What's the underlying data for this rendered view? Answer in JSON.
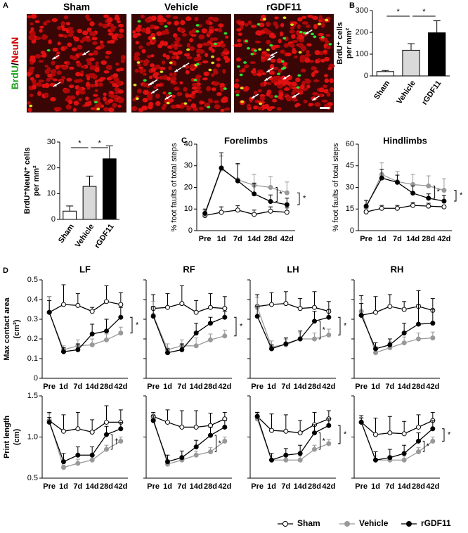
{
  "panel_labels": [
    "A",
    "B",
    "C",
    "D"
  ],
  "image_panel": {
    "label_green": "BrdU",
    "label_slash": "/",
    "label_red": "NeuN",
    "images": [
      "Sham",
      "Vehicle",
      "rGDF11"
    ]
  },
  "legend": [
    {
      "name": "Sham",
      "color": "#000000",
      "marker": "open"
    },
    {
      "name": "Vehicle",
      "color": "#999999",
      "marker": "filled"
    },
    {
      "name": "rGDF11",
      "color": "#000000",
      "marker": "filled"
    }
  ],
  "chart_data": [
    {
      "type": "bar",
      "ylabel": [
        "BrdU⁺ cells",
        "per mm²"
      ],
      "categories": [
        "Sham",
        "Vehicle",
        "rGDF11"
      ],
      "values": [
        20,
        118,
        198
      ],
      "errors": [
        5,
        30,
        55
      ],
      "colors": [
        "#ffffff",
        "#d9d9d9",
        "#000000"
      ],
      "ylim": [
        0,
        300
      ],
      "yticks": [
        0,
        100,
        200,
        300
      ],
      "significance": [
        "*",
        "*"
      ]
    },
    {
      "type": "bar",
      "ylabel": [
        "BrdU⁺NeuN⁺ cells",
        "per mm²"
      ],
      "categories": [
        "Sham",
        "Vehicle",
        "rGDF11"
      ],
      "values": [
        3.2,
        12.8,
        23.5
      ],
      "errors": [
        2,
        4,
        5
      ],
      "colors": [
        "#ffffff",
        "#d9d9d9",
        "#000000"
      ],
      "ylim": [
        0,
        30
      ],
      "yticks": [
        0,
        10,
        20,
        30
      ],
      "significance": [
        "*",
        "*"
      ]
    },
    {
      "type": "line",
      "title": "Forelimbs",
      "ylabel": "% foot faults of total steps",
      "categories": [
        "Pre",
        "1d",
        "7d",
        "14d",
        "28d",
        "42d"
      ],
      "ylim": [
        0,
        40
      ],
      "yticks": [
        0,
        10,
        20,
        30,
        40
      ],
      "series": [
        {
          "values": [
            7,
            8.5,
            9.5,
            7.5,
            9,
            8.5
          ],
          "errors": [
            1,
            2.5,
            2,
            2,
            2,
            2
          ]
        },
        {
          "values": [
            7.5,
            28.5,
            23.5,
            21,
            20,
            17.5
          ],
          "errors": [
            2,
            6,
            7,
            5,
            5,
            5
          ]
        },
        {
          "values": [
            8,
            29,
            23,
            17,
            13.5,
            12
          ],
          "errors": [
            2,
            7,
            8,
            5,
            3,
            3
          ]
        }
      ],
      "inner_label": "*",
      "bracket_label": "*"
    },
    {
      "type": "line",
      "title": "Hindlimbs",
      "ylabel": "% foot faults of total steps",
      "categories": [
        "Pre",
        "1d",
        "7d",
        "14d",
        "28d",
        "42d"
      ],
      "ylim": [
        0,
        60
      ],
      "yticks": [
        0,
        15,
        30,
        45,
        60
      ],
      "series": [
        {
          "values": [
            13,
            15.5,
            15.5,
            17.5,
            17,
            16.5
          ],
          "errors": [
            1,
            2,
            2,
            2,
            2,
            1
          ]
        },
        {
          "values": [
            16,
            39,
            34,
            32,
            31,
            28
          ],
          "errors": [
            5,
            8,
            7,
            7,
            7,
            8
          ]
        },
        {
          "values": [
            17,
            36.5,
            33.5,
            26,
            22.5,
            20.5
          ],
          "errors": [
            4,
            6,
            5,
            5,
            3,
            4
          ]
        }
      ],
      "inner_label": "*",
      "bracket_label": "*"
    },
    {
      "type": "line",
      "title": "LF",
      "ylabel": [
        "Max contact area",
        "(cm²)"
      ],
      "categories": [
        "Pre",
        "1d",
        "7d",
        "14d",
        "28d",
        "42d"
      ],
      "ylim": [
        0,
        0.5
      ],
      "yticks": [
        0,
        0.1,
        0.2,
        0.3,
        0.4,
        0.5
      ],
      "series": [
        {
          "values": [
            0.335,
            0.375,
            0.37,
            0.34,
            0.39,
            0.375
          ],
          "errors": [
            0.08,
            0.1,
            0.06,
            0.02,
            0.08,
            0.06
          ]
        },
        {
          "values": [
            0.335,
            0.145,
            0.165,
            0.17,
            0.195,
            0.23
          ],
          "errors": [
            0.08,
            0.02,
            0.03,
            0.03,
            0.03,
            0.03
          ]
        },
        {
          "values": [
            0.335,
            0.135,
            0.145,
            0.225,
            0.24,
            0.31
          ],
          "errors": [
            0.06,
            0.02,
            0.03,
            0.05,
            0.06,
            0.05
          ]
        }
      ],
      "bracket_label": "*"
    },
    {
      "type": "line",
      "title": "RF",
      "categories": [
        "Pre",
        "1d",
        "7d",
        "14d",
        "28d",
        "42d"
      ],
      "ylim": [
        0,
        0.5
      ],
      "yticks": [
        0,
        0.1,
        0.2,
        0.3,
        0.4,
        0.5
      ],
      "series": [
        {
          "values": [
            0.355,
            0.36,
            0.38,
            0.335,
            0.36,
            0.355
          ],
          "errors": [
            0.07,
            0.07,
            0.09,
            0.06,
            0.07,
            0.06
          ]
        },
        {
          "values": [
            0.32,
            0.145,
            0.165,
            0.165,
            0.195,
            0.215
          ],
          "errors": [
            0.07,
            0.03,
            0.03,
            0.04,
            0.03,
            0.03
          ]
        },
        {
          "values": [
            0.315,
            0.13,
            0.145,
            0.23,
            0.28,
            0.31
          ],
          "errors": [
            0.05,
            0.02,
            0.03,
            0.05,
            0.03,
            0.03
          ]
        }
      ],
      "bracket_label": "*"
    },
    {
      "type": "line",
      "title": "LH",
      "categories": [
        "Pre",
        "1d",
        "7d",
        "14d",
        "28d",
        "42d"
      ],
      "ylim": [
        0,
        0.5
      ],
      "yticks": [
        0,
        0.1,
        0.2,
        0.3,
        0.4,
        0.5
      ],
      "series": [
        {
          "values": [
            0.365,
            0.375,
            0.38,
            0.355,
            0.36,
            0.34
          ],
          "errors": [
            0.06,
            0.06,
            0.06,
            0.05,
            0.08,
            0.05
          ]
        },
        {
          "values": [
            0.36,
            0.16,
            0.17,
            0.2,
            0.2,
            0.22
          ],
          "errors": [
            0.05,
            0.03,
            0.03,
            0.03,
            0.03,
            0.03
          ]
        },
        {
          "values": [
            0.315,
            0.15,
            0.175,
            0.2,
            0.29,
            0.31
          ],
          "errors": [
            0.05,
            0.02,
            0.03,
            0.04,
            0.05,
            0.04
          ]
        }
      ],
      "inner_label": "*",
      "bracket_label": "*"
    },
    {
      "type": "line",
      "title": "RH",
      "categories": [
        "Pre",
        "1d",
        "7d",
        "14d",
        "28d",
        "42d"
      ],
      "ylim": [
        0,
        0.5
      ],
      "yticks": [
        0,
        0.1,
        0.2,
        0.3,
        0.4,
        0.5
      ],
      "series": [
        {
          "values": [
            0.32,
            0.335,
            0.365,
            0.35,
            0.365,
            0.345
          ],
          "errors": [
            0.1,
            0.08,
            0.06,
            0.04,
            0.08,
            0.06
          ]
        },
        {
          "values": [
            0.34,
            0.13,
            0.155,
            0.18,
            0.2,
            0.205
          ],
          "errors": [
            0.06,
            0.03,
            0.03,
            0.03,
            0.03,
            0.03
          ]
        },
        {
          "values": [
            0.32,
            0.15,
            0.17,
            0.23,
            0.275,
            0.28
          ],
          "errors": [
            0.06,
            0.03,
            0.03,
            0.05,
            0.1,
            0.07
          ]
        }
      ]
    },
    {
      "type": "line",
      "ylabel": [
        "Print length",
        "(cm)"
      ],
      "categories": [
        "Pre",
        "1d",
        "7d",
        "14d",
        "28d",
        "42d"
      ],
      "ylim": [
        0.5,
        1.5
      ],
      "yticks": [
        0.5,
        {
          "value": 1,
          "label": "1.0"
        },
        1.5
      ],
      "series": [
        {
          "values": [
            1.2,
            1.07,
            1.1,
            1.06,
            1.18,
            1.18
          ],
          "errors": [
            0.1,
            0.2,
            0.2,
            0.15,
            0.2,
            0.15
          ]
        },
        {
          "values": [
            1.2,
            0.63,
            0.68,
            0.72,
            0.85,
            0.95
          ],
          "errors": [
            0.08,
            0.03,
            0.05,
            0.05,
            0.05,
            0.05
          ]
        },
        {
          "values": [
            1.18,
            0.7,
            0.78,
            0.78,
            1.03,
            1.1
          ],
          "errors": [
            0.06,
            0.1,
            0.1,
            0.1,
            0.1,
            0.08
          ]
        }
      ],
      "inner_label": "†"
    },
    {
      "type": "line",
      "categories": [
        "Pre",
        "1d",
        "7d",
        "14d",
        "28d",
        "42d"
      ],
      "ylim": [
        0.5,
        1.5
      ],
      "yticks": [
        0.5,
        {
          "value": 1,
          "label": "1.0"
        },
        1.5
      ],
      "series": [
        {
          "values": [
            1.25,
            1.18,
            1.12,
            1.12,
            1.14,
            1.22
          ],
          "errors": [
            0.05,
            0.15,
            0.2,
            0.2,
            0.15,
            0.08
          ]
        },
        {
          "values": [
            1.22,
            0.67,
            0.72,
            0.78,
            0.82,
            0.95
          ],
          "errors": [
            0.06,
            0.05,
            0.05,
            0.05,
            0.05,
            0.05
          ]
        },
        {
          "values": [
            1.2,
            0.7,
            0.75,
            0.88,
            1.02,
            1.12
          ],
          "errors": [
            0.06,
            0.08,
            0.08,
            0.08,
            0.1,
            0.08
          ]
        }
      ],
      "inner_label": "*"
    },
    {
      "type": "line",
      "categories": [
        "Pre",
        "1d",
        "7d",
        "14d",
        "28d",
        "42d"
      ],
      "ylim": [
        0.5,
        1.5
      ],
      "yticks": [
        0.5,
        {
          "value": 1,
          "label": "1.0"
        },
        1.5
      ],
      "series": [
        {
          "values": [
            1.25,
            1.08,
            1.07,
            1.05,
            1.15,
            1.22
          ],
          "errors": [
            0.05,
            0.2,
            0.2,
            0.15,
            0.15,
            0.1
          ]
        },
        {
          "values": [
            1.22,
            0.72,
            0.72,
            0.72,
            0.85,
            0.92
          ],
          "errors": [
            0.06,
            0.05,
            0.05,
            0.05,
            0.05,
            0.05
          ]
        },
        {
          "values": [
            1.25,
            0.72,
            0.78,
            0.8,
            1.05,
            1.14
          ],
          "errors": [
            0.05,
            0.08,
            0.08,
            0.1,
            0.1,
            0.08
          ]
        }
      ],
      "inner_label": "*",
      "bracket_label": "*"
    },
    {
      "type": "line",
      "categories": [
        "Pre",
        "1d",
        "7d",
        "14d",
        "28d",
        "42d"
      ],
      "ylim": [
        0.5,
        1.5
      ],
      "yticks": [
        0.5,
        {
          "value": 1,
          "label": "1.0"
        },
        1.5
      ],
      "series": [
        {
          "values": [
            1.18,
            1.03,
            1.05,
            1.04,
            1.12,
            1.2
          ],
          "errors": [
            0.08,
            0.2,
            0.2,
            0.15,
            0.15,
            0.1
          ]
        },
        {
          "values": [
            1.18,
            0.72,
            0.72,
            0.72,
            0.82,
            0.95
          ],
          "errors": [
            0.06,
            0.05,
            0.05,
            0.05,
            0.05,
            0.05
          ]
        },
        {
          "values": [
            1.18,
            0.72,
            0.75,
            0.8,
            0.95,
            1.1
          ],
          "errors": [
            0.05,
            0.1,
            0.1,
            0.1,
            0.1,
            0.1
          ]
        }
      ],
      "inner_label": "*",
      "bracket_label": "*"
    }
  ]
}
